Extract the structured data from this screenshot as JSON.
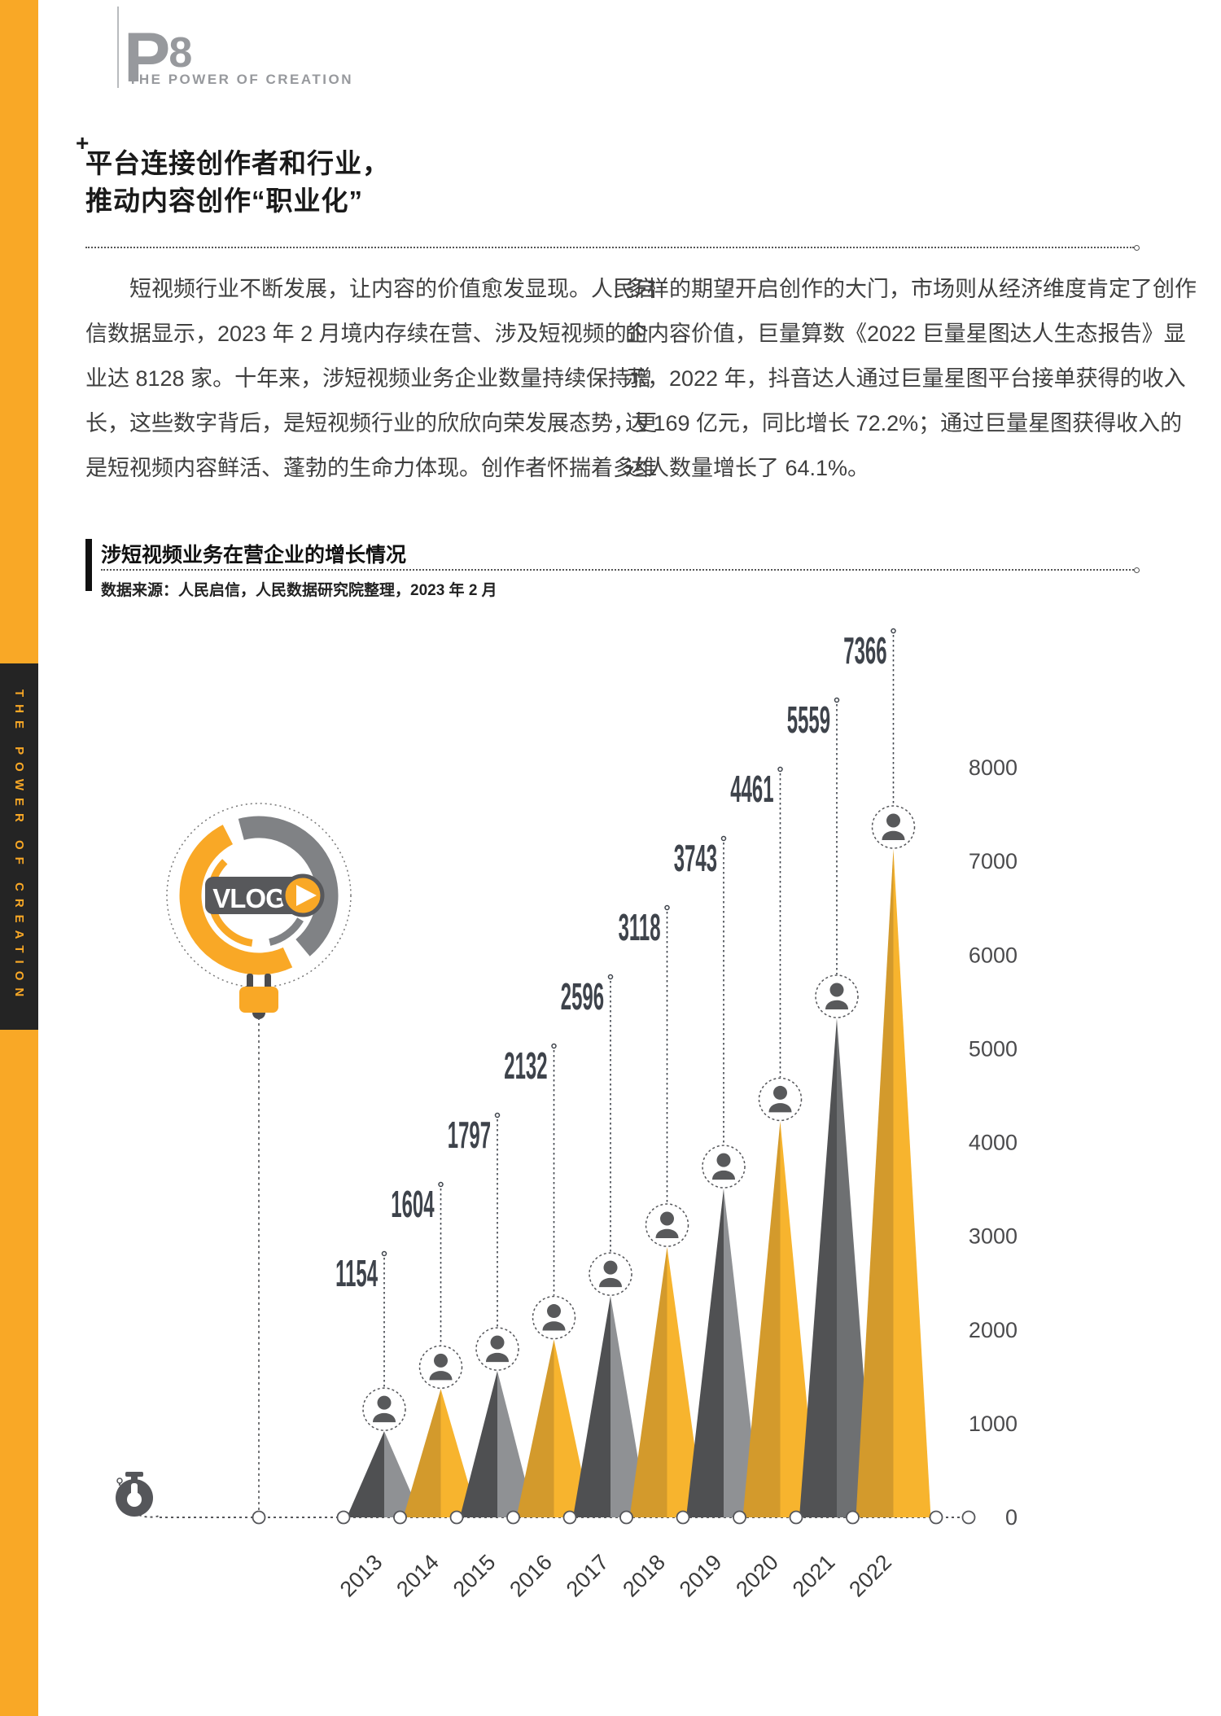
{
  "header": {
    "page_letter": "P",
    "page_number": "8",
    "subtitle": "THE POWER OF CREATION"
  },
  "sidebar": {
    "vertical_text": "THE POWER OF CREATION"
  },
  "article": {
    "plus_mark": "+",
    "title_line1": "平台连接创作者和行业，",
    "title_line2": "推动内容创作“职业化”",
    "left_column": [
      "短视频行业不断发展，让内容的价值愈发显现。人民启",
      "信数据显示，2023 年 2 月境内存续在营、涉及短视频的企",
      "业达 8128 家。十年来，涉短视频业务企业数量持续保持增",
      "长，这些数字背后，是短视频行业的欣欣向荣发展态势，更",
      "是短视频内容鲜活、蓬勃的生命力体现。创作者怀揣着多维"
    ],
    "right_column": [
      "多样的期望开启创作的大门，市场则从经济维度肯定了创作",
      "的内容价值，巨量算数《2022 巨量星图达人生态报告》显",
      "示，2022 年，抖音达人通过巨量星图平台接单获得的收入",
      "达 169 亿元，同比增长 72.2%；通过巨量星图获得收入的",
      "达人数量增长了 64.1%。"
    ]
  },
  "section": {
    "title": "涉短视频业务在营企业的增长情况",
    "source": "数据来源：人民启信，人民数据研究院整理，2023 年 2 月"
  },
  "vlog_badge": {
    "label": "VLOG"
  },
  "chart_data": {
    "type": "bar",
    "variant": "triangle-peak",
    "title": "涉短视频业务在营企业的增长情况",
    "xlabel": "",
    "ylabel": "",
    "categories": [
      "2013",
      "2014",
      "2015",
      "2016",
      "2017",
      "2018",
      "2019",
      "2020",
      "2021",
      "2022"
    ],
    "values": [
      1154,
      1604,
      1797,
      2132,
      2596,
      3118,
      3743,
      4461,
      5559,
      7366
    ],
    "ylim": [
      0,
      8000
    ],
    "yticks": [
      0,
      1000,
      2000,
      3000,
      4000,
      5000,
      6000,
      7000,
      8000
    ],
    "grid": false,
    "legend": "none",
    "colors": {
      "gray_dark": "#4F5052",
      "gray_light": "#8F9194",
      "gray_dark_alt": "#515254",
      "gray_light_alt": "#6E7072",
      "yellow_dark": "#D39A2C",
      "yellow_light": "#F7B42E",
      "person": "#58595B",
      "label": "#3E434B",
      "axis": "#4B4B4D",
      "accent_orange": "#F9A826"
    },
    "color_pattern": [
      "gray",
      "yellow",
      "gray",
      "yellow",
      "gray",
      "yellow",
      "gray",
      "yellow",
      "gray2",
      "yellow"
    ]
  }
}
